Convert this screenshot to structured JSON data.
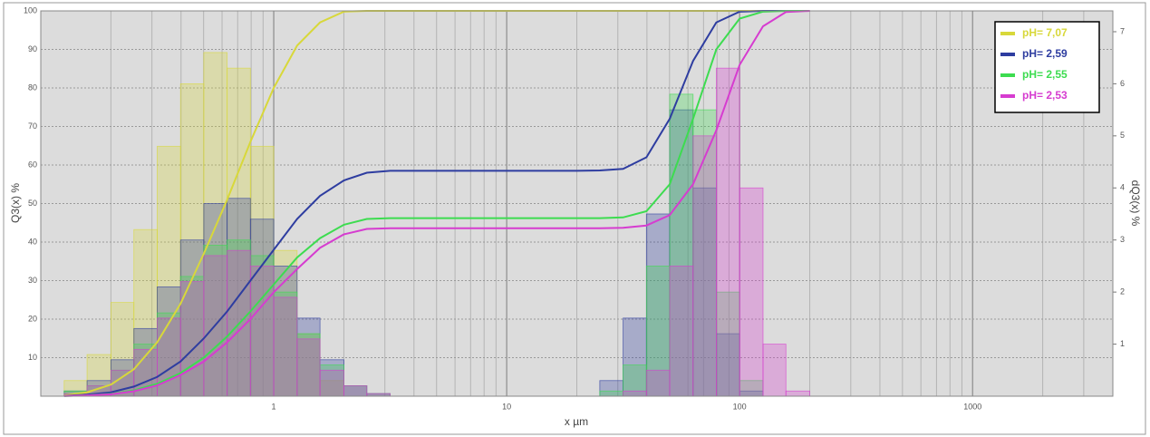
{
  "chart_data": {
    "type": "histogram_line",
    "x_label": "x µm",
    "y_label": "Q3(x) %",
    "y2_label": "dQ3(x) %",
    "xscale": "log",
    "xlim": [
      0.1,
      4000
    ],
    "xticks": [
      1,
      10,
      100,
      1000
    ],
    "xgrid_minor": [
      0.2,
      0.3,
      0.4,
      0.5,
      0.6,
      0.7,
      0.8,
      0.9,
      2,
      3,
      4,
      5,
      6,
      7,
      8,
      9,
      20,
      30,
      40,
      50,
      60,
      70,
      80,
      90,
      200,
      300,
      400,
      500,
      600,
      700,
      800,
      900,
      2000,
      3000,
      4000
    ],
    "ylim": [
      0,
      100
    ],
    "yticks": [
      10,
      20,
      30,
      40,
      50,
      60,
      70,
      80,
      90,
      100
    ],
    "y2lim": [
      0,
      7.4
    ],
    "y2ticks": [
      1,
      2,
      3,
      4,
      5,
      6,
      7
    ],
    "grid": true,
    "legend": "top-right",
    "bins": [
      0.126,
      0.158,
      0.2,
      0.251,
      0.316,
      0.398,
      0.501,
      0.631,
      0.794,
      1,
      1.26,
      1.58,
      2,
      2.51,
      3.16,
      3.98,
      5.01,
      6.31,
      7.94,
      10,
      12.6,
      15.8,
      20,
      25.1,
      31.6,
      39.8,
      50.1,
      63.1,
      79.4,
      100,
      126,
      158,
      200
    ],
    "series": [
      {
        "name": "pH= 7,07",
        "color": "#d8d83a",
        "values": [
          0.2,
          1,
          3,
          7,
          14,
          24,
          37,
          51,
          66,
          80,
          91,
          97,
          99.8,
          100,
          100,
          100,
          100,
          100,
          100,
          100,
          100,
          100,
          100,
          100,
          100,
          100,
          100,
          100,
          100,
          100,
          100,
          100,
          100
        ],
        "hist": [
          0.3,
          0.8,
          1.8,
          3.2,
          4.8,
          6.0,
          6.6,
          6.3,
          4.8,
          2.8,
          1.2,
          0.3,
          0,
          0,
          0,
          0,
          0,
          0,
          0,
          0,
          0,
          0,
          0,
          0,
          0,
          0,
          0,
          0,
          0,
          0,
          0,
          0
        ]
      },
      {
        "name": "pH= 2,59",
        "color": "#2e3da0",
        "values": [
          0.1,
          0.4,
          1,
          2.5,
          5,
          9,
          15,
          22,
          30,
          38,
          46,
          52,
          56,
          58,
          58.5,
          58.5,
          58.5,
          58.5,
          58.5,
          58.5,
          58.5,
          58.5,
          58.5,
          58.6,
          59,
          62,
          72,
          87,
          97,
          99.8,
          100,
          100,
          100
        ],
        "hist": [
          0.1,
          0.3,
          0.7,
          1.3,
          2.1,
          3.0,
          3.7,
          3.8,
          3.4,
          2.5,
          1.5,
          0.7,
          0.2,
          0.05,
          0,
          0,
          0,
          0,
          0,
          0,
          0,
          0,
          0,
          0.3,
          1.5,
          3.5,
          5.5,
          4.0,
          1.2,
          0.1,
          0,
          0
        ]
      },
      {
        "name": "pH= 2,55",
        "color": "#3ddc50",
        "values": [
          0.05,
          0.2,
          0.6,
          1.5,
          3.2,
          6,
          10,
          15.5,
          22,
          29,
          36,
          41,
          44.5,
          46,
          46.2,
          46.2,
          46.2,
          46.2,
          46.2,
          46.2,
          46.2,
          46.2,
          46.2,
          46.2,
          46.4,
          48,
          55,
          72,
          90,
          98,
          99.8,
          100,
          100
        ],
        "hist": [
          0.1,
          0.2,
          0.5,
          1.0,
          1.6,
          2.3,
          2.9,
          3.0,
          2.7,
          2.0,
          1.2,
          0.6,
          0.2,
          0.05,
          0,
          0,
          0,
          0,
          0,
          0,
          0,
          0,
          0,
          0.1,
          0.6,
          2.5,
          5.8,
          5.5,
          2.0,
          0.3,
          0,
          0
        ]
      },
      {
        "name": "pH= 2,53",
        "color": "#d63cd0",
        "values": [
          0.05,
          0.2,
          0.5,
          1.3,
          2.8,
          5.5,
          9,
          14,
          20,
          27,
          33,
          38.5,
          42,
          43.4,
          43.6,
          43.6,
          43.6,
          43.6,
          43.6,
          43.6,
          43.6,
          43.6,
          43.6,
          43.6,
          43.7,
          44.3,
          47,
          55,
          69,
          86,
          96,
          99.7,
          100
        ],
        "hist": [
          0.05,
          0.2,
          0.5,
          0.9,
          1.5,
          2.2,
          2.7,
          2.8,
          2.5,
          1.9,
          1.1,
          0.5,
          0.2,
          0.05,
          0,
          0,
          0,
          0,
          0,
          0,
          0,
          0,
          0,
          0,
          0.1,
          0.5,
          2.5,
          5.0,
          6.3,
          4.0,
          1.0,
          0.1
        ]
      }
    ]
  }
}
